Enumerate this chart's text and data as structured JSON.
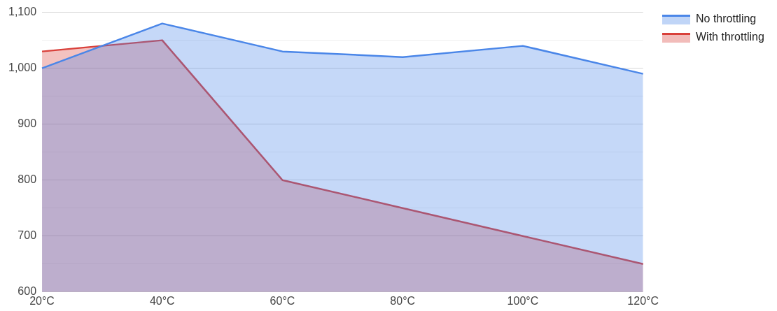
{
  "chart_data": {
    "type": "area",
    "categories": [
      "20°C",
      "40°C",
      "60°C",
      "80°C",
      "100°C",
      "120°C"
    ],
    "series": [
      {
        "name": "No throttling",
        "color": "#4a86e8",
        "values": [
          1000,
          1080,
          1030,
          1020,
          1040,
          990
        ]
      },
      {
        "name": "With throttling",
        "color": "#d9403a",
        "values": [
          1030,
          1050,
          800,
          750,
          700,
          650
        ]
      }
    ],
    "ylim": [
      600,
      1100
    ],
    "yticks": [
      600,
      {
        "value": 650,
        "label": null
      },
      700,
      {
        "value": 750,
        "label": null
      },
      800,
      {
        "value": 850,
        "label": null
      },
      900,
      {
        "value": 950,
        "label": null
      },
      {
        "value": 1000,
        "label": "1,000"
      },
      {
        "value": 1050,
        "label": null
      },
      {
        "value": 1100,
        "label": "1,100"
      }
    ],
    "grid": "y",
    "legend": "top right",
    "marker": "none",
    "line_style": "solid"
  }
}
